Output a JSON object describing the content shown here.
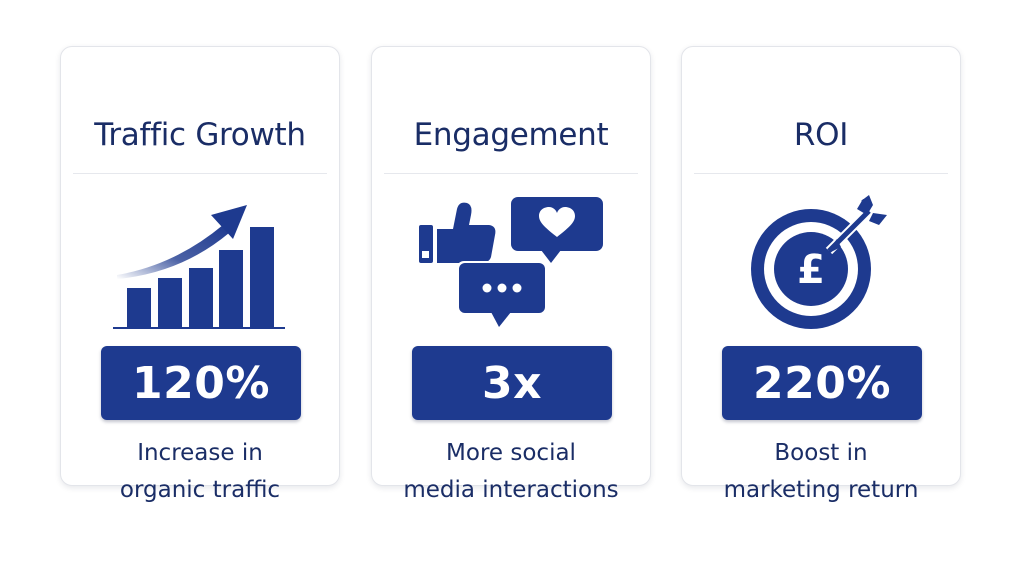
{
  "colors": {
    "navy": "#1e3a8f",
    "title_text": "#1a2d66",
    "card_border": "#e3e5ea",
    "background": "#ffffff"
  },
  "cards": [
    {
      "title": "Traffic Growth",
      "icon": "bar-chart-growth-icon",
      "stat": "120%",
      "description_lines": [
        "Increase in",
        "organic traffic"
      ]
    },
    {
      "title": "Engagement",
      "icon": "social-engagement-icon",
      "stat": "3x",
      "description_lines": [
        "More social",
        "media interactions"
      ]
    },
    {
      "title": "ROI",
      "icon": "pound-target-icon",
      "icon_symbol": "£",
      "stat": "220%",
      "description_lines": [
        "Boost in",
        "marketing return"
      ]
    }
  ]
}
